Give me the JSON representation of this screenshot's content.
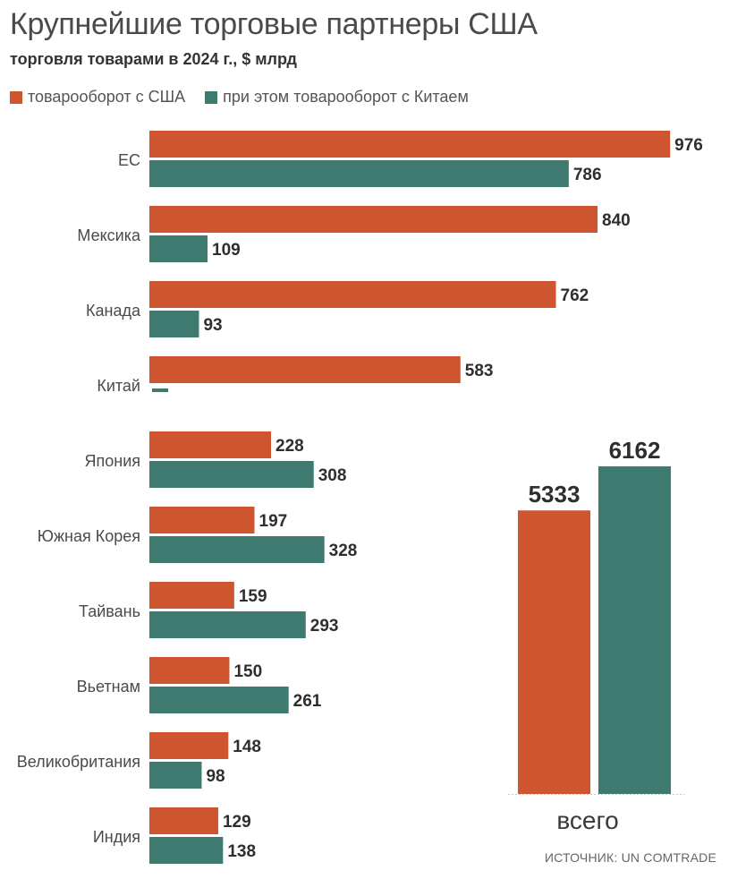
{
  "header": {
    "title": "Крупнейшие торговые партнеры США",
    "subtitle": "торговля товарами в 2024 г., $ млрд"
  },
  "legend": {
    "items": [
      {
        "label": "товарооборот с США",
        "color": "#cd5530"
      },
      {
        "label": "при этом товарооборот с Китаем",
        "color": "#3e7a70"
      }
    ]
  },
  "source": "ИСТОЧНИК: UN COMTRADE",
  "chart_data": [
    {
      "type": "bar",
      "orientation": "horizontal",
      "categories": [
        "ЕС",
        "Мексика",
        "Канада",
        "Китай",
        "Япония",
        "Южная Корея",
        "Тайвань",
        "Вьетнам",
        "Великобритания",
        "Индия"
      ],
      "series": [
        {
          "name": "товарооборот с США",
          "color": "#cd5530",
          "values": [
            976,
            840,
            762,
            583,
            228,
            197,
            159,
            150,
            148,
            129
          ]
        },
        {
          "name": "при этом товарооборот с Китаем",
          "color": "#3e7a70",
          "values": [
            786,
            109,
            93,
            null,
            308,
            328,
            293,
            261,
            98,
            138
          ]
        }
      ],
      "xlim": [
        0,
        1000
      ]
    },
    {
      "type": "bar",
      "categories": [
        "всего"
      ],
      "series": [
        {
          "name": "товарооборот с США",
          "color": "#cd5530",
          "values": [
            5333
          ]
        },
        {
          "name": "при этом товарооборот с Китаем",
          "color": "#3e7a70",
          "values": [
            6162
          ]
        }
      ]
    }
  ]
}
